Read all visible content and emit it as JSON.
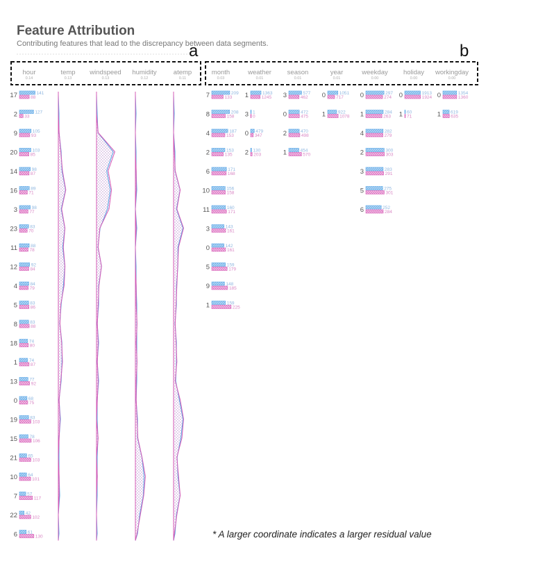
{
  "title": "Feature Attribution",
  "subtitle": "Contributing features that lead to the discrepancy between data segments.",
  "annotations": {
    "a": "a",
    "b": "b"
  },
  "note": "* A larger coordinate indicates a larger residual value",
  "colors": {
    "blue": "#5aa7e6",
    "pink": "#d65bb6",
    "text": "#555555"
  },
  "chart_data": {
    "type": "bar",
    "features": [
      {
        "name": "hour",
        "score": "0.14"
      },
      {
        "name": "temp",
        "score": "0.13"
      },
      {
        "name": "windspeed",
        "score": "0.13"
      },
      {
        "name": "humidity",
        "score": "0.12"
      },
      {
        "name": "atemp",
        "score": "0.11"
      },
      {
        "name": "month",
        "score": "0.03"
      },
      {
        "name": "weather",
        "score": "0.01"
      },
      {
        "name": "season",
        "score": "0.01"
      },
      {
        "name": "year",
        "score": "0.01"
      },
      {
        "name": "weekday",
        "score": "0.00"
      },
      {
        "name": "holiday",
        "score": "0.00"
      },
      {
        "name": "workingday",
        "score": "0.00"
      }
    ],
    "hour": [
      {
        "category": "17",
        "a": 141,
        "b": 88
      },
      {
        "category": "2",
        "a": 127,
        "b": 33
      },
      {
        "category": "9",
        "a": 105,
        "b": 93
      },
      {
        "category": "20",
        "a": 103,
        "b": 85
      },
      {
        "category": "14",
        "a": 98,
        "b": 87
      },
      {
        "category": "16",
        "a": 89,
        "b": 71
      },
      {
        "category": "3",
        "a": 98,
        "b": 77
      },
      {
        "category": "23",
        "a": 83,
        "b": 70
      },
      {
        "category": "11",
        "a": 88,
        "b": 78
      },
      {
        "category": "12",
        "a": 92,
        "b": 84
      },
      {
        "category": "4",
        "a": 84,
        "b": 79
      },
      {
        "category": "5",
        "a": 83,
        "b": 86
      },
      {
        "category": "8",
        "a": 83,
        "b": 88
      },
      {
        "category": "18",
        "a": 74,
        "b": 80
      },
      {
        "category": "1",
        "a": 74,
        "b": 87
      },
      {
        "category": "13",
        "a": 77,
        "b": 92
      },
      {
        "category": "0",
        "a": 68,
        "b": 75
      },
      {
        "category": "19",
        "a": 83,
        "b": 103
      },
      {
        "category": "15",
        "a": 78,
        "b": 106
      },
      {
        "category": "21",
        "a": 65,
        "b": 103
      },
      {
        "category": "10",
        "a": 64,
        "b": 101
      },
      {
        "category": "7",
        "a": 57,
        "b": 117
      },
      {
        "category": "22",
        "a": 42,
        "b": 102
      },
      {
        "category": "6",
        "a": 61,
        "b": 130
      }
    ],
    "month": [
      {
        "category": "7",
        "a": 209,
        "b": 133
      },
      {
        "category": "8",
        "a": 208,
        "b": 158
      },
      {
        "category": "4",
        "a": 187,
        "b": 153
      },
      {
        "category": "2",
        "a": 153,
        "b": 135
      },
      {
        "category": "6",
        "a": 171,
        "b": 168
      },
      {
        "category": "10",
        "a": 156,
        "b": 158
      },
      {
        "category": "11",
        "a": 160,
        "b": 171
      },
      {
        "category": "3",
        "a": 143,
        "b": 161
      },
      {
        "category": "0",
        "a": 142,
        "b": 161
      },
      {
        "category": "5",
        "a": 159,
        "b": 179
      },
      {
        "category": "9",
        "a": 148,
        "b": 185
      },
      {
        "category": "1",
        "a": 159,
        "b": 225
      }
    ],
    "weather": [
      {
        "category": "1",
        "a": 1363,
        "b": 1245
      },
      {
        "category": "3",
        "a": 1,
        "b": 0
      },
      {
        "category": "0",
        "a": 479,
        "b": 347
      },
      {
        "category": "2",
        "a": 130,
        "b": 203
      }
    ],
    "season": [
      {
        "category": "3",
        "a": 577,
        "b": 462
      },
      {
        "category": "0",
        "a": 472,
        "b": 475
      },
      {
        "category": "2",
        "a": 470,
        "b": 498
      },
      {
        "category": "1",
        "a": 454,
        "b": 570
      }
    ],
    "year": [
      {
        "category": "0",
        "a": 1051,
        "b": 717
      },
      {
        "category": "1",
        "a": 922,
        "b": 1078
      }
    ],
    "weekday": [
      {
        "category": "0",
        "a": 297,
        "b": 274
      },
      {
        "category": "1",
        "a": 284,
        "b": 263
      },
      {
        "category": "4",
        "a": 282,
        "b": 279
      },
      {
        "category": "2",
        "a": 300,
        "b": 303
      },
      {
        "category": "3",
        "a": 283,
        "b": 291
      },
      {
        "category": "5",
        "a": 275,
        "b": 301
      },
      {
        "category": "6",
        "a": 252,
        "b": 284
      }
    ],
    "holiday": [
      {
        "category": "0",
        "a": 1913,
        "b": 1924
      },
      {
        "category": "1",
        "a": 60,
        "b": 71
      }
    ],
    "workingday": [
      {
        "category": "0",
        "a": 1354,
        "b": 1360
      },
      {
        "category": "1",
        "a": 619,
        "b": 635
      }
    ],
    "residual_profiles": {
      "temp": [
        0,
        0,
        1,
        3,
        5,
        9,
        4,
        8,
        6,
        8,
        7,
        3,
        2,
        4,
        5,
        3,
        1,
        2,
        1,
        0,
        1,
        1,
        0,
        0
      ],
      "windspeed": [
        0,
        0,
        2,
        22,
        14,
        18,
        15,
        4,
        2,
        6,
        3,
        2,
        1,
        2,
        1,
        2,
        1,
        0,
        2,
        0,
        1,
        0,
        0,
        0
      ],
      "humidity": [
        0,
        0,
        0,
        0,
        1,
        1,
        0,
        1,
        0,
        0,
        1,
        1,
        2,
        1,
        2,
        1,
        1,
        2,
        3,
        8,
        12,
        10,
        6,
        2
      ],
      "atemp": [
        0,
        0,
        0,
        1,
        2,
        8,
        4,
        12,
        6,
        5,
        4,
        3,
        2,
        3,
        4,
        2,
        8,
        12,
        10,
        4,
        6,
        8,
        4,
        1
      ]
    }
  }
}
